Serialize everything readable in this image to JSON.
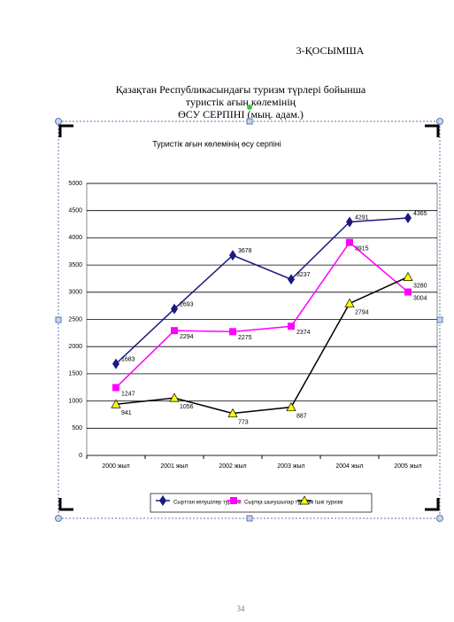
{
  "annex": "3-ҚОСЫМША",
  "heading": [
    "Қазақтан Республикасындағы  туризм түрлері бойынша",
    "туристік  ағын көлемінің",
    "ӨСУ СЕРПІНІ (мың. адам.)"
  ],
  "chart_data": {
    "type": "line",
    "title": "Туристік ағын көлемінің өсу серпіні",
    "categories": [
      "2000  жыл",
      "2001  жыл",
      "2002  жыл",
      "2003  жыл",
      "2004  жыл",
      "2005  жыл"
    ],
    "series": [
      {
        "name": "Сырттан келушілер туризмі",
        "color": "#1a1a80",
        "marker": "diamond",
        "values": [
          1683,
          2693,
          3678,
          3237,
          4291,
          4365
        ]
      },
      {
        "name": "Сыртқа шығушылар туризмі",
        "color": "#ff00ff",
        "marker": "square",
        "values": [
          1247,
          2294,
          2275,
          2374,
          3915,
          3004
        ]
      },
      {
        "name": "Ішкі туризм",
        "color": "#000000",
        "marker": "triangle",
        "marker_color": "#ffff00",
        "values": [
          941,
          1056,
          773,
          887,
          2794,
          3280
        ]
      }
    ],
    "ylim": [
      0,
      5000
    ],
    "yticks": [
      0,
      500,
      1000,
      1500,
      2000,
      2500,
      3000,
      3500,
      4000,
      4500,
      5000
    ],
    "grid": true
  },
  "page_number": "34"
}
